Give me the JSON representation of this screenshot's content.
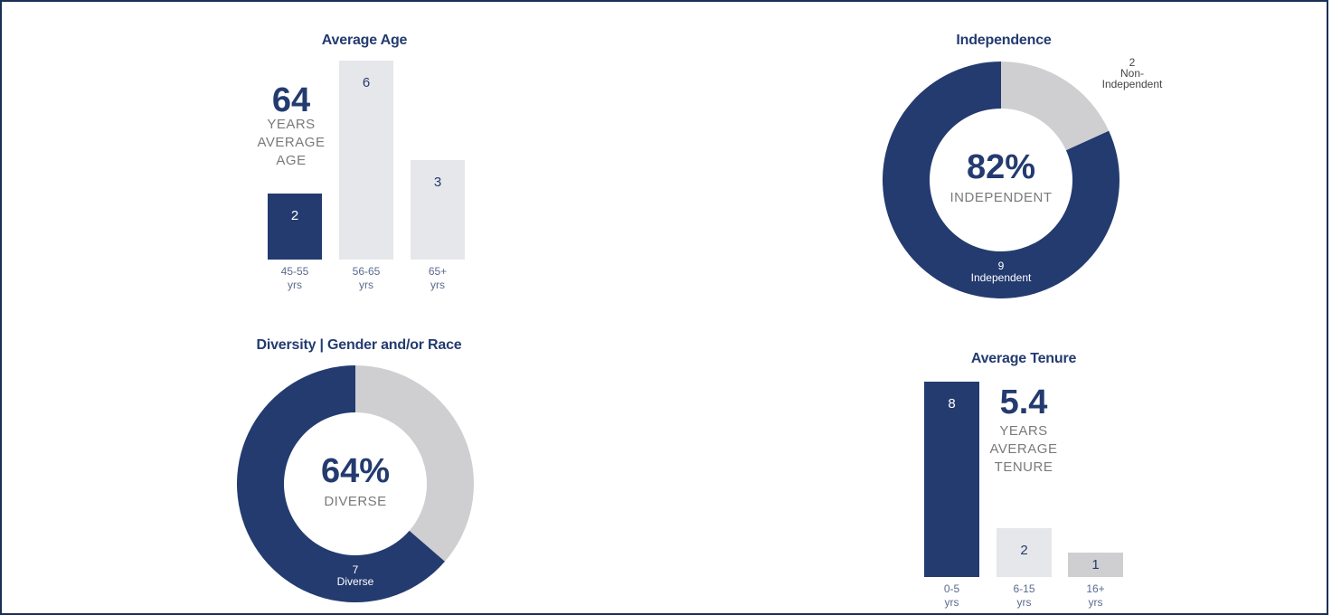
{
  "colors": {
    "dark": "#243b70",
    "light": "#e6e7ea",
    "mid": "#cfcfd1",
    "text_muted": "#7a7a7a",
    "text_axis": "#5b6b8e"
  },
  "chart_data": [
    {
      "type": "bar",
      "title": "Average Age",
      "categories": [
        "45-55 yrs",
        "56-65 yrs",
        "65+ yrs"
      ],
      "category_lines": [
        [
          "45-55",
          "yrs"
        ],
        [
          "56-65",
          "yrs"
        ],
        [
          "65+",
          "yrs"
        ]
      ],
      "values": [
        2,
        6,
        3
      ],
      "summary_value": "64",
      "summary_lines": [
        "YEARS",
        "AVERAGE",
        "AGE"
      ]
    },
    {
      "type": "pie",
      "title": "Independence",
      "slices": [
        {
          "name": "Independent",
          "value": 9
        },
        {
          "name": "Non-Independent",
          "value": 2
        }
      ],
      "center_value": "82%",
      "center_label": "INDEPENDENT",
      "slice_labels": {
        "dark_count": "9",
        "dark_name": "Independent",
        "light_count": "2",
        "light_name_1": "Non-",
        "light_name_2": "Independent"
      }
    },
    {
      "type": "pie",
      "title": "Diversity | Gender and/or Race",
      "slices": [
        {
          "name": "Diverse",
          "value": 7
        },
        {
          "name": "",
          "value": 4
        }
      ],
      "center_value": "64%",
      "center_label": "DIVERSE",
      "slice_labels": {
        "dark_count": "7",
        "dark_name": "Diverse"
      }
    },
    {
      "type": "bar",
      "title": "Average Tenure",
      "categories": [
        "0-5 yrs",
        "6-15 yrs",
        "16+ yrs"
      ],
      "category_lines": [
        [
          "0-5",
          "yrs"
        ],
        [
          "6-15",
          "yrs"
        ],
        [
          "16+",
          "yrs"
        ]
      ],
      "values": [
        8,
        2,
        1
      ],
      "summary_value": "5.4",
      "summary_lines": [
        "YEARS",
        "AVERAGE",
        "TENURE"
      ]
    }
  ]
}
